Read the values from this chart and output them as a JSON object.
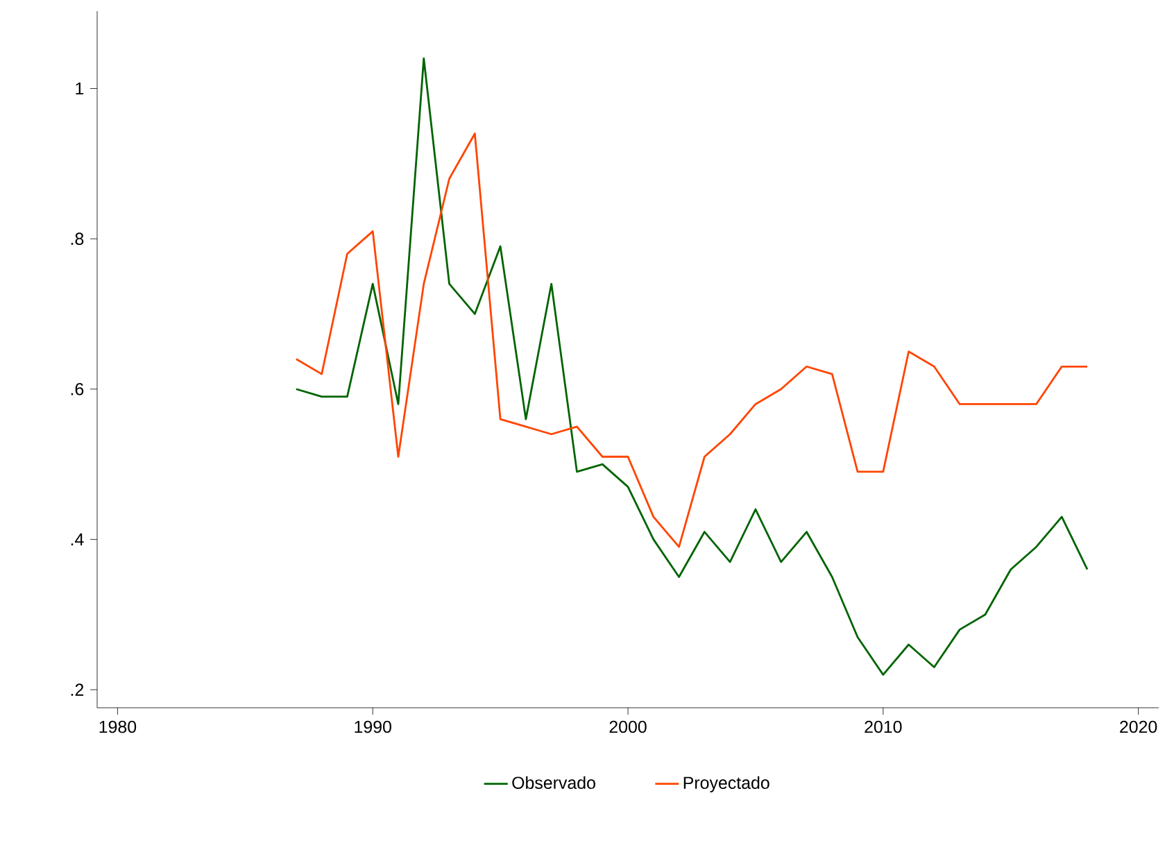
{
  "chart_data": {
    "type": "line",
    "x": [
      1987,
      1988,
      1989,
      1990,
      1991,
      1992,
      1993,
      1994,
      1995,
      1996,
      1997,
      1998,
      1999,
      2000,
      2001,
      2002,
      2003,
      2004,
      2005,
      2006,
      2007,
      2008,
      2009,
      2010,
      2011,
      2012,
      2013,
      2014,
      2015,
      2016,
      2017,
      2018
    ],
    "series": [
      {
        "name": "Observado",
        "color": "#006400",
        "values": [
          0.6,
          0.59,
          0.59,
          0.74,
          0.58,
          1.04,
          0.74,
          0.7,
          0.79,
          0.56,
          0.74,
          0.49,
          0.5,
          0.47,
          0.4,
          0.35,
          0.41,
          0.37,
          0.44,
          0.37,
          0.41,
          0.35,
          0.27,
          0.22,
          0.26,
          0.23,
          0.28,
          0.3,
          0.36,
          0.39,
          0.43,
          0.36
        ]
      },
      {
        "name": "Proyectado",
        "color": "#ff4500",
        "values": [
          0.64,
          0.62,
          0.78,
          0.81,
          0.51,
          0.74,
          0.88,
          0.94,
          0.56,
          0.55,
          0.54,
          0.55,
          0.51,
          0.51,
          0.43,
          0.39,
          0.51,
          0.54,
          0.58,
          0.6,
          0.63,
          0.62,
          0.49,
          0.49,
          0.65,
          0.63,
          0.58,
          0.58,
          0.58,
          0.58,
          0.63,
          0.63
        ]
      }
    ],
    "xlim": [
      1979.2,
      2020.8
    ],
    "xticks": [
      1980,
      1990,
      2000,
      2010,
      2020
    ],
    "ylim": [
      0.176,
      1.103
    ],
    "yticks": [
      {
        "value": 0.2,
        "label": ".2"
      },
      {
        "value": 0.4,
        "label": ".4"
      },
      {
        "value": 0.6,
        "label": ".6"
      },
      {
        "value": 0.8,
        "label": ".8"
      },
      {
        "value": 1,
        "label": "1"
      }
    ],
    "grid": false,
    "legend": "bottom",
    "marker": "none",
    "line_style": "solid"
  }
}
